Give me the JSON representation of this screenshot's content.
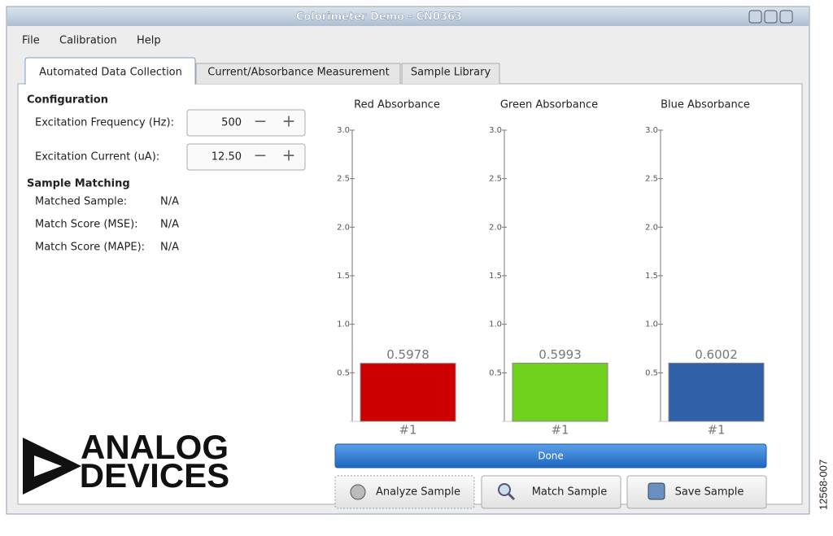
{
  "window": {
    "title": "Colorimeter Demo - CN0363"
  },
  "menu": [
    "File",
    "Calibration",
    "Help"
  ],
  "tabs": [
    "Automated Data Collection",
    "Current/Absorbance Measurement",
    "Sample Library"
  ],
  "configuration": {
    "heading": "Configuration",
    "fields": [
      {
        "label": "Excitation Frequency (Hz):",
        "value": "500"
      },
      {
        "label": "Excitation Current (uA):",
        "value": "12.50"
      }
    ]
  },
  "sample_matching": {
    "heading": "Sample Matching",
    "rows": [
      {
        "label": "Matched Sample:",
        "value": "N/A"
      },
      {
        "label": "Match Score (MSE):",
        "value": "N/A"
      },
      {
        "label": "Match Score (MAPE):",
        "value": "N/A"
      }
    ]
  },
  "logo": [
    "ANALOG",
    "DEVICES"
  ],
  "chart_data": [
    {
      "type": "bar",
      "title": "Red Absorbance",
      "categories": [
        "#1"
      ],
      "values": [
        0.5978
      ],
      "color": "#cc0000",
      "ylim": [
        0,
        3
      ],
      "yticks": [
        0.5,
        {
          "value": 1,
          "label": "1.0"
        },
        1.5,
        {
          "value": 2,
          "label": "2.0"
        },
        2.5,
        {
          "value": 3,
          "label": "3.0"
        }
      ]
    },
    {
      "type": "bar",
      "title": "Green Absorbance",
      "categories": [
        "#1"
      ],
      "values": [
        0.5993
      ],
      "color": "#6fd11c",
      "ylim": [
        0,
        3
      ],
      "yticks": [
        0.5,
        {
          "value": 1,
          "label": "1.0"
        },
        1.5,
        {
          "value": 2,
          "label": "2.0"
        },
        2.5,
        {
          "value": 3,
          "label": "3.0"
        }
      ]
    },
    {
      "type": "bar",
      "title": "Blue Absorbance",
      "categories": [
        "#1"
      ],
      "values": [
        0.6002
      ],
      "color": "#3060a8",
      "ylim": [
        0,
        3
      ],
      "yticks": [
        0.5,
        {
          "value": 1,
          "label": "1.0"
        },
        1.5,
        {
          "value": 2,
          "label": "2.0"
        },
        2.5,
        {
          "value": 3,
          "label": "3.0"
        }
      ]
    }
  ],
  "progress": "Done",
  "buttons": [
    "Analyze Sample",
    "Match Sample",
    "Save Sample"
  ],
  "figure_id": "12568-007"
}
